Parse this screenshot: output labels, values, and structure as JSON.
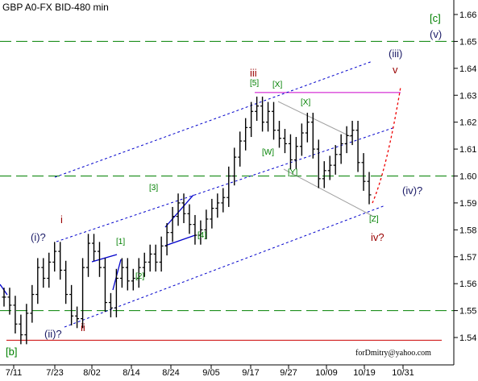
{
  "chart_data": {
    "type": "ohlc",
    "title": "GBP A0-FX BID-480 min",
    "credit": "forDmitry@yahoo.com",
    "ylim": [
      1.535,
      1.668
    ],
    "y_ticks": [
      "1.54",
      "1.55",
      "1.56",
      "1.57",
      "1.58",
      "1.59",
      "1.60",
      "1.61",
      "1.62",
      "1.63",
      "1.64",
      "1.65",
      "1.66"
    ],
    "x_labels": [
      "7/11",
      "7/23",
      "8/02",
      "8/14",
      "8/24",
      "9/05",
      "9/17",
      "9/27",
      "10/09",
      "10/19",
      "10/31"
    ],
    "series": [
      {
        "values": [
          1.555,
          1.552,
          1.545,
          1.541,
          1.549,
          1.556,
          1.566,
          1.562,
          1.568,
          1.572,
          1.565,
          1.556,
          1.548,
          1.547,
          1.566,
          1.575,
          1.572,
          1.566,
          1.553,
          1.551,
          1.562,
          1.566,
          1.561,
          1.562,
          1.566,
          1.568,
          1.571,
          1.568,
          1.574,
          1.579,
          1.585,
          1.59,
          1.586,
          1.582,
          1.578,
          1.58,
          1.584,
          1.588,
          1.59,
          1.592,
          1.6,
          1.607,
          1.613,
          1.618,
          1.624,
          1.626,
          1.62,
          1.624,
          1.617,
          1.614,
          1.612,
          1.606,
          1.611,
          1.616,
          1.62,
          1.61,
          1.599,
          1.602,
          1.604,
          1.608,
          1.612,
          1.615,
          1.617,
          1.605,
          1.598,
          1.593
        ]
      }
    ],
    "horizontal_lines": [
      {
        "value": 1.65,
        "style": "dashed",
        "color": "#008000"
      },
      {
        "value": 1.6,
        "style": "dashed",
        "color": "#008000"
      },
      {
        "value": 1.55,
        "style": "dashed",
        "color": "#008000"
      },
      {
        "value": 1.539,
        "style": "solid",
        "color": "#cc0000"
      },
      {
        "value": 1.631,
        "style": "solid",
        "color": "#cc00cc"
      }
    ],
    "annotations": {
      "green": [
        "[c]",
        "[b]",
        "[1]",
        "[2]",
        "[3]",
        "[4]",
        "[5]",
        "[X]",
        "[X]",
        "[W]",
        "[Y]",
        "[Z]"
      ],
      "navy": [
        "(v)",
        "(iii)",
        "(i)?",
        "(ii)?",
        "(iv)?"
      ],
      "brown": [
        "i",
        "ii",
        "iii",
        "v",
        "iv?"
      ]
    },
    "colors": {
      "bars": "#000000",
      "grid": "#008000",
      "channel": "#0000cc",
      "tick_text": "#000000",
      "green_label": "#008000",
      "navy_label": "#1a1a66",
      "brown_label": "#990000",
      "forecast": "#ee0000",
      "triangle": "#a0a0a0"
    }
  }
}
